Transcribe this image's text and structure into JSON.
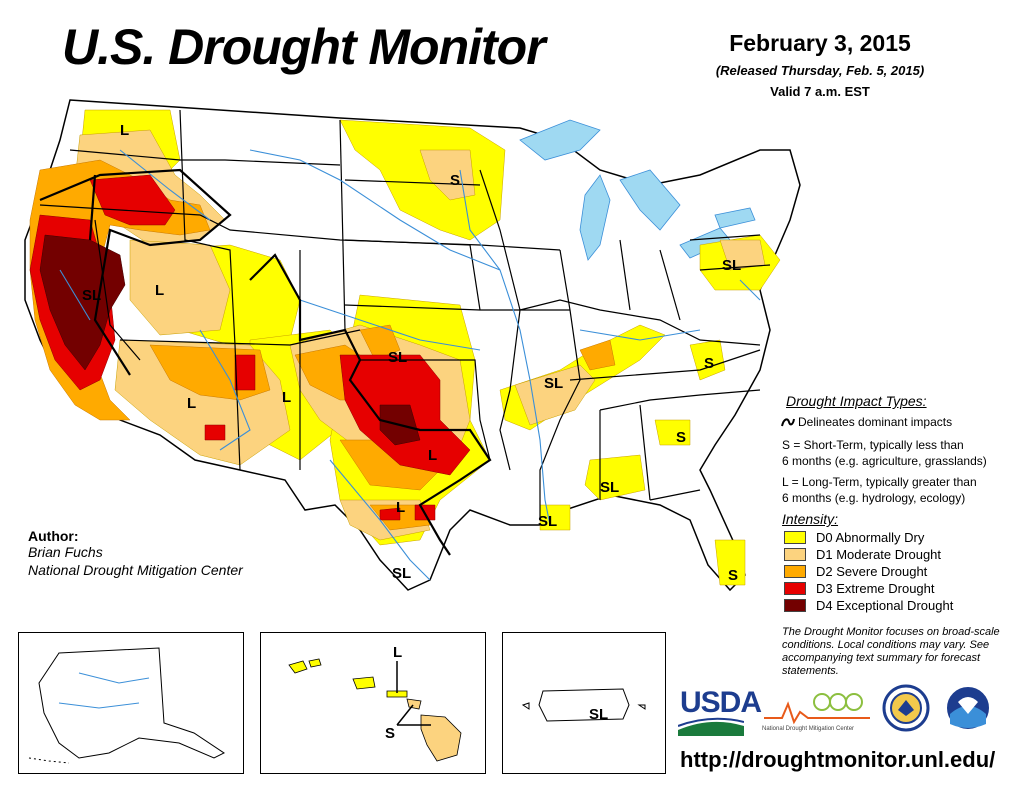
{
  "header": {
    "title": "U.S. Drought Monitor",
    "date": "February 3, 2015",
    "released": "(Released Thursday, Feb. 5, 2015)",
    "valid": "Valid 7 a.m. EST"
  },
  "impact_types": {
    "title": "Drought Impact Types:",
    "dominant": "Delineates dominant impacts",
    "short_term_line1": "S = Short-Term, typically less than",
    "short_term_line2": "6 months (e.g. agriculture, grasslands)",
    "long_term_line1": "L = Long-Term, typically greater than",
    "long_term_line2": "6 months (e.g. hydrology, ecology)"
  },
  "intensity": {
    "title": "Intensity:",
    "levels": [
      {
        "label": "D0 Abnormally Dry",
        "color": "#ffff00"
      },
      {
        "label": "D1 Moderate Drought",
        "color": "#fcd37f"
      },
      {
        "label": "D2 Severe Drought",
        "color": "#ffaa00"
      },
      {
        "label": "D3 Extreme Drought",
        "color": "#e60000"
      },
      {
        "label": "D4 Exceptional Drought",
        "color": "#730000"
      }
    ]
  },
  "author": {
    "label": "Author:",
    "name": "Brian Fuchs",
    "org": "National Drought Mitigation Center"
  },
  "note": "The Drought Monitor focuses on broad-scale conditions. Local conditions may vary. See accompanying text summary for forecast statements.",
  "url": "http://droughtmonitor.unl.edu/",
  "logos": {
    "usda": "USDA",
    "ndmc": "National Drought Mitigation Center"
  },
  "map_labels": {
    "nw_l": "L",
    "ca_sl": "SL",
    "nv_l": "L",
    "dakota_s": "S",
    "ok_sl": "SL",
    "az_l": "L",
    "nm_l": "L",
    "tx_l1": "L",
    "tx_l2": "L",
    "tn_sl": "SL",
    "pa_sl": "SL",
    "va_s": "S",
    "ga_s": "S",
    "al_sl": "SL",
    "la_sl": "SL",
    "fl_s": "S",
    "tx_sl": "SL",
    "hi_l": "L",
    "hi_s": "S",
    "pr_sl": "SL"
  },
  "colors": {
    "water": "#9fd9f2",
    "river": "#3b8fd8",
    "border": "#999999",
    "state": "#000000"
  }
}
